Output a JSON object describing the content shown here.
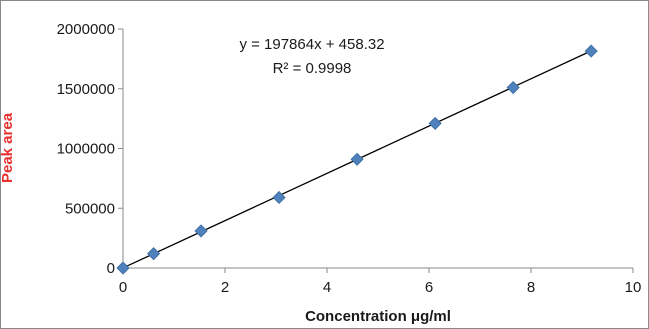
{
  "chart_data": {
    "type": "scatter",
    "title": "",
    "xlabel": "Concentration μg/ml",
    "ylabel": "Peak  area",
    "xlim": [
      0,
      10
    ],
    "ylim": [
      0,
      2000000
    ],
    "x_ticks": [
      "0",
      "2",
      "4",
      "6",
      "8",
      "10"
    ],
    "y_ticks": [
      "0",
      "500000",
      "1000000",
      "1500000",
      "2000000"
    ],
    "grid": false,
    "legend": "none",
    "series": [
      {
        "marker": "diamond",
        "color": "#4f81bd",
        "points": [
          {
            "x": 0,
            "y": 0
          },
          {
            "x": 0.6,
            "y": 120000
          },
          {
            "x": 1.53,
            "y": 310000
          },
          {
            "x": 3.06,
            "y": 590000
          },
          {
            "x": 4.59,
            "y": 910000
          },
          {
            "x": 6.12,
            "y": 1210000
          },
          {
            "x": 7.65,
            "y": 1510000
          },
          {
            "x": 9.18,
            "y": 1815000
          }
        ]
      }
    ],
    "trendline": {
      "type": "linear",
      "slope": 197864,
      "intercept": 458.32,
      "color": "#000000"
    },
    "annotations": {
      "equation": "y = 197864x + 458.32",
      "r_squared": "R² = 0.9998"
    },
    "colors": {
      "ylabel": "#e8312f",
      "frame": "#888888",
      "axis": "#888888"
    }
  }
}
